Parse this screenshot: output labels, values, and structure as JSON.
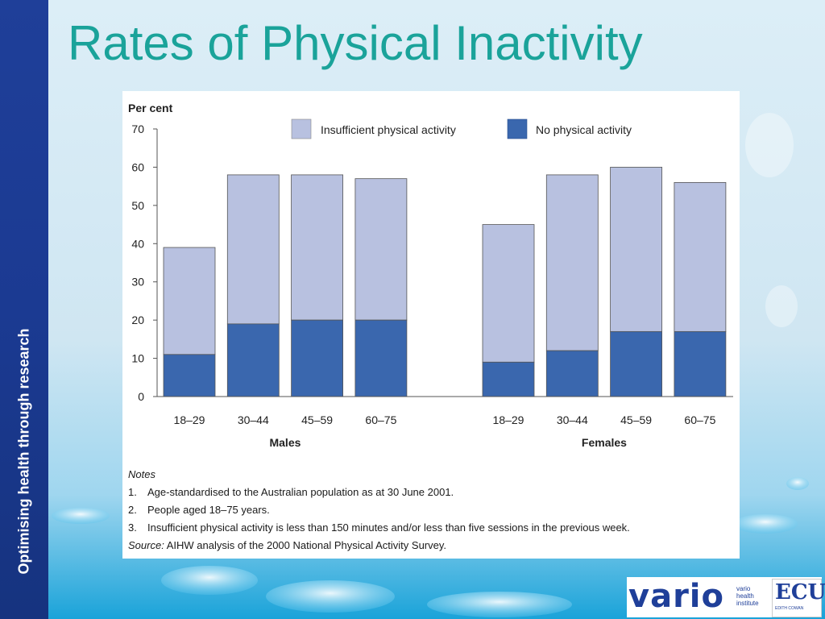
{
  "slide": {
    "title": "Rates of Physical Inactivity",
    "sidebar_text": "Optimising health through research"
  },
  "chart_data": {
    "type": "bar",
    "stacked": true,
    "ylabel": "Per cent",
    "ylim": [
      0,
      70
    ],
    "yticks": [
      0,
      10,
      20,
      30,
      40,
      50,
      60,
      70
    ],
    "legend": {
      "placement": "top",
      "items": [
        "Insufficient physical activity",
        "No physical activity"
      ]
    },
    "groups": [
      {
        "label": "Males",
        "categories": [
          "18–29",
          "30–44",
          "45–59",
          "60–75"
        ],
        "no_activity": [
          11,
          19,
          20,
          20
        ],
        "total": [
          39,
          58,
          58,
          57
        ]
      },
      {
        "label": "Females",
        "categories": [
          "18–29",
          "30–44",
          "45–59",
          "60–75"
        ],
        "no_activity": [
          9,
          12,
          17,
          17
        ],
        "total": [
          45,
          58,
          60,
          56
        ]
      }
    ],
    "series": [
      {
        "name": "No physical activity",
        "color": "#3a67ae"
      },
      {
        "name": "Insufficient physical activity",
        "color": "#b8c1e0"
      }
    ],
    "grid": false
  },
  "notes": {
    "heading": "Notes",
    "items": [
      {
        "num": "1.",
        "text": "Age-standardised to the Australian population as at 30 June 2001."
      },
      {
        "num": "2.",
        "text": "People aged 18–75 years."
      },
      {
        "num": "3.",
        "text": "Insufficient physical activity is less than 150 minutes and/or less than five sessions in the previous week."
      }
    ],
    "source_label": "Source:",
    "source_text": " AIHW analysis of the 2000 National Physical Activity Survey."
  },
  "logos": {
    "vario_word": "vario",
    "vario_sub": [
      "vario",
      "health",
      "institute"
    ],
    "ecu_word": "ECU",
    "ecu_sub": "EDITH COWAN"
  },
  "colors": {
    "title": "#1aa39a",
    "sidebar": "#1f3f99"
  }
}
